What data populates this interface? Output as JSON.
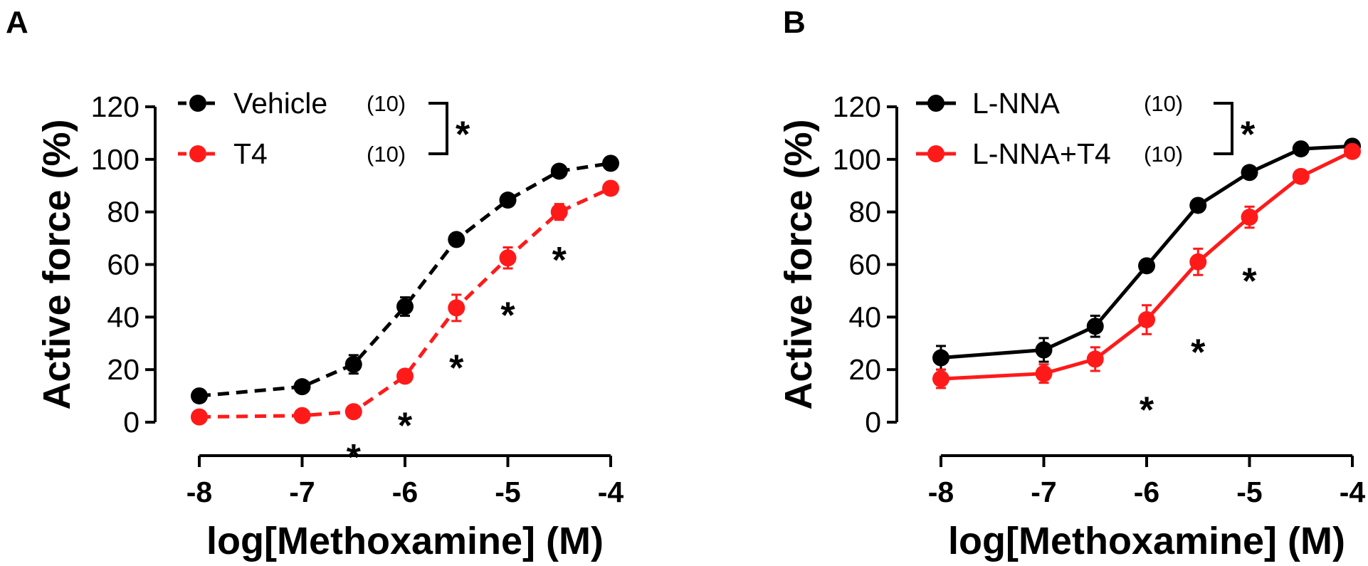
{
  "chart_data": [
    {
      "panel_label": "A",
      "type": "line",
      "line_style": "dashed",
      "xlabel": "log[Methoxamine] (M)",
      "ylabel": "Active force (%)",
      "xlim": [
        -8,
        -4
      ],
      "ylim": [
        0,
        120
      ],
      "x_ticks": [
        -8,
        -7,
        -6,
        -5,
        -4
      ],
      "x_tick_labels": [
        "-8",
        "-7",
        "-6",
        "-5",
        "-4"
      ],
      "y_ticks": [
        0,
        20,
        40,
        60,
        80,
        100,
        120
      ],
      "y_tick_labels": [
        "0",
        "20",
        "40",
        "60",
        "80",
        "100",
        "120"
      ],
      "legend_placement": "top-left",
      "legend_significance": "*",
      "series": [
        {
          "name": "Vehicle",
          "n_label": "(10)",
          "color": "#000000",
          "x": [
            -8,
            -7,
            -6.5,
            -6,
            -5.5,
            -5,
            -4.5,
            -4
          ],
          "y": [
            10,
            13.5,
            22,
            44,
            69.5,
            84.5,
            95.5,
            98.5
          ],
          "err": [
            1.5,
            1.5,
            3.5,
            3.5,
            2,
            2,
            1.5,
            1.5
          ]
        },
        {
          "name": "T4",
          "n_label": "(10)",
          "color": "#ff1a1a",
          "x": [
            -8,
            -7,
            -6.5,
            -6,
            -5.5,
            -5,
            -4.5,
            -4
          ],
          "y": [
            2,
            2.5,
            4,
            17.5,
            43.5,
            62.5,
            80,
            89
          ],
          "err": [
            1,
            1,
            1.5,
            2,
            5,
            4,
            3,
            2
          ]
        }
      ],
      "annotations": [
        {
          "x": -6.5,
          "y": -10,
          "text": "*"
        },
        {
          "x": -6,
          "y": 2,
          "text": "*"
        },
        {
          "x": -5.5,
          "y": 24,
          "text": "*"
        },
        {
          "x": -5,
          "y": 44,
          "text": "*"
        },
        {
          "x": -4.5,
          "y": 65,
          "text": "*"
        }
      ]
    },
    {
      "panel_label": "B",
      "type": "line",
      "line_style": "solid",
      "xlabel": "log[Methoxamine] (M)",
      "ylabel": "Active force (%)",
      "xlim": [
        -8,
        -4
      ],
      "ylim": [
        0,
        120
      ],
      "x_ticks": [
        -8,
        -7,
        -6,
        -5,
        -4
      ],
      "x_tick_labels": [
        "-8",
        "-7",
        "-6",
        "-5",
        "-4"
      ],
      "y_ticks": [
        0,
        20,
        40,
        60,
        80,
        100,
        120
      ],
      "y_tick_labels": [
        "0",
        "20",
        "40",
        "60",
        "80",
        "100",
        "120"
      ],
      "legend_placement": "top-left",
      "legend_significance": "*",
      "series": [
        {
          "name": "L-NNA",
          "n_label": "(10)",
          "color": "#000000",
          "x": [
            -8,
            -7,
            -6.5,
            -6,
            -5.5,
            -5,
            -4.5,
            -4
          ],
          "y": [
            24.5,
            27.5,
            36.5,
            59.5,
            82.5,
            95,
            104,
            105
          ],
          "err": [
            4.5,
            4.5,
            4,
            2,
            2,
            2,
            1.5,
            1.5
          ]
        },
        {
          "name": "L-NNA+T4",
          "n_label": "(10)",
          "color": "#ff1a1a",
          "x": [
            -8,
            -7,
            -6.5,
            -6,
            -5.5,
            -5,
            -4.5,
            -4
          ],
          "y": [
            16.5,
            18.5,
            24,
            39,
            61,
            78,
            93.5,
            103
          ],
          "err": [
            3.5,
            3.5,
            4.5,
            5.5,
            5,
            4,
            1.5,
            1.5
          ]
        }
      ],
      "annotations": [
        {
          "x": -6,
          "y": 8,
          "text": "*"
        },
        {
          "x": -5.5,
          "y": 30,
          "text": "*"
        },
        {
          "x": -5,
          "y": 57,
          "text": "*"
        }
      ]
    }
  ]
}
